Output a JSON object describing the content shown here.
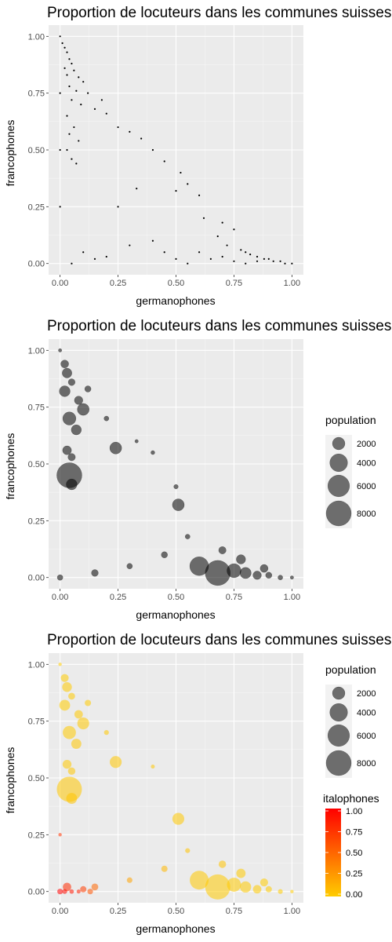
{
  "chart_data": [
    {
      "type": "scatter",
      "title": "Proportion de locuteurs dans les communes suisses",
      "xlabel": "germanophones",
      "ylabel": "francophones",
      "xlim": [
        0,
        1
      ],
      "ylim": [
        0,
        1
      ],
      "x_ticks": [
        "0.00",
        "0.25",
        "0.50",
        "0.75",
        "1.00"
      ],
      "y_ticks": [
        "0.00",
        "0.25",
        "0.50",
        "0.75",
        "1.00"
      ],
      "grid": true,
      "point_color": "#000000",
      "points": [
        {
          "x": 0.0,
          "y": 1.0
        },
        {
          "x": 0.01,
          "y": 0.97
        },
        {
          "x": 0.02,
          "y": 0.95
        },
        {
          "x": 0.03,
          "y": 0.93
        },
        {
          "x": 0.04,
          "y": 0.9
        },
        {
          "x": 0.05,
          "y": 0.88
        },
        {
          "x": 0.02,
          "y": 0.86
        },
        {
          "x": 0.06,
          "y": 0.85
        },
        {
          "x": 0.03,
          "y": 0.83
        },
        {
          "x": 0.08,
          "y": 0.82
        },
        {
          "x": 0.1,
          "y": 0.8
        },
        {
          "x": 0.04,
          "y": 0.78
        },
        {
          "x": 0.07,
          "y": 0.76
        },
        {
          "x": 0.12,
          "y": 0.75
        },
        {
          "x": 0.05,
          "y": 0.72
        },
        {
          "x": 0.09,
          "y": 0.7
        },
        {
          "x": 0.15,
          "y": 0.68
        },
        {
          "x": 0.03,
          "y": 0.65
        },
        {
          "x": 0.06,
          "y": 0.6
        },
        {
          "x": 0.04,
          "y": 0.57
        },
        {
          "x": 0.08,
          "y": 0.54
        },
        {
          "x": 0.03,
          "y": 0.5
        },
        {
          "x": 0.05,
          "y": 0.46
        },
        {
          "x": 0.07,
          "y": 0.44
        },
        {
          "x": 0.2,
          "y": 0.66
        },
        {
          "x": 0.25,
          "y": 0.6
        },
        {
          "x": 0.3,
          "y": 0.58
        },
        {
          "x": 0.18,
          "y": 0.72
        },
        {
          "x": 0.35,
          "y": 0.55
        },
        {
          "x": 0.4,
          "y": 0.5
        },
        {
          "x": 0.45,
          "y": 0.45
        },
        {
          "x": 0.52,
          "y": 0.4
        },
        {
          "x": 0.55,
          "y": 0.35
        },
        {
          "x": 0.6,
          "y": 0.3
        },
        {
          "x": 0.33,
          "y": 0.33
        },
        {
          "x": 0.5,
          "y": 0.32
        },
        {
          "x": 0.25,
          "y": 0.25
        },
        {
          "x": 0.62,
          "y": 0.2
        },
        {
          "x": 0.7,
          "y": 0.18
        },
        {
          "x": 0.75,
          "y": 0.15
        },
        {
          "x": 0.68,
          "y": 0.12
        },
        {
          "x": 0.72,
          "y": 0.08
        },
        {
          "x": 0.78,
          "y": 0.06
        },
        {
          "x": 0.8,
          "y": 0.05
        },
        {
          "x": 0.82,
          "y": 0.04
        },
        {
          "x": 0.85,
          "y": 0.03
        },
        {
          "x": 0.88,
          "y": 0.02
        },
        {
          "x": 0.9,
          "y": 0.02
        },
        {
          "x": 0.92,
          "y": 0.01
        },
        {
          "x": 0.95,
          "y": 0.01
        },
        {
          "x": 0.97,
          "y": 0.0
        },
        {
          "x": 1.0,
          "y": 0.0
        },
        {
          "x": 0.1,
          "y": 0.05
        },
        {
          "x": 0.15,
          "y": 0.02
        },
        {
          "x": 0.2,
          "y": 0.03
        },
        {
          "x": 0.3,
          "y": 0.08
        },
        {
          "x": 0.4,
          "y": 0.1
        },
        {
          "x": 0.45,
          "y": 0.05
        },
        {
          "x": 0.5,
          "y": 0.02
        },
        {
          "x": 0.55,
          "y": 0.0
        },
        {
          "x": 0.6,
          "y": 0.05
        },
        {
          "x": 0.65,
          "y": 0.02
        },
        {
          "x": 0.7,
          "y": 0.03
        },
        {
          "x": 0.75,
          "y": 0.01
        },
        {
          "x": 0.8,
          "y": 0.0
        },
        {
          "x": 0.85,
          "y": 0.01
        },
        {
          "x": 0.05,
          "y": 0.0
        },
        {
          "x": 0.0,
          "y": 0.25
        },
        {
          "x": 0.0,
          "y": 0.5
        },
        {
          "x": 0.0,
          "y": 0.75
        }
      ]
    },
    {
      "type": "scatter",
      "title": "Proportion de locuteurs dans les communes suisses",
      "xlabel": "germanophones",
      "ylabel": "francophones",
      "xlim": [
        0,
        1
      ],
      "ylim": [
        0,
        1
      ],
      "x_ticks": [
        "0.00",
        "0.25",
        "0.50",
        "0.75",
        "1.00"
      ],
      "y_ticks": [
        "0.00",
        "0.25",
        "0.50",
        "0.75",
        "1.00"
      ],
      "grid": true,
      "point_color": "#000000",
      "size_legend": {
        "title": "population",
        "values": [
          2000,
          4000,
          6000,
          8000
        ],
        "labels": [
          "2000",
          "4000",
          "6000",
          "8000"
        ],
        "placement": "right"
      },
      "points": [
        {
          "x": 0.0,
          "y": 1.0,
          "p": 150
        },
        {
          "x": 0.02,
          "y": 0.94,
          "p": 800
        },
        {
          "x": 0.03,
          "y": 0.9,
          "p": 1200
        },
        {
          "x": 0.05,
          "y": 0.86,
          "p": 600
        },
        {
          "x": 0.02,
          "y": 0.82,
          "p": 1500
        },
        {
          "x": 0.08,
          "y": 0.78,
          "p": 900
        },
        {
          "x": 0.1,
          "y": 0.74,
          "p": 1800
        },
        {
          "x": 0.04,
          "y": 0.7,
          "p": 2200
        },
        {
          "x": 0.07,
          "y": 0.65,
          "p": 1300
        },
        {
          "x": 0.03,
          "y": 0.56,
          "p": 1000
        },
        {
          "x": 0.05,
          "y": 0.53,
          "p": 700
        },
        {
          "x": 0.04,
          "y": 0.45,
          "p": 8000
        },
        {
          "x": 0.05,
          "y": 0.41,
          "p": 1500
        },
        {
          "x": 0.24,
          "y": 0.57,
          "p": 1800
        },
        {
          "x": 0.51,
          "y": 0.32,
          "p": 1800
        },
        {
          "x": 0.6,
          "y": 0.05,
          "p": 4500
        },
        {
          "x": 0.68,
          "y": 0.02,
          "p": 8000
        },
        {
          "x": 0.75,
          "y": 0.03,
          "p": 2500
        },
        {
          "x": 0.8,
          "y": 0.02,
          "p": 1600
        },
        {
          "x": 0.85,
          "y": 0.01,
          "p": 900
        },
        {
          "x": 0.9,
          "y": 0.01,
          "p": 500
        },
        {
          "x": 0.95,
          "y": 0.0,
          "p": 300
        },
        {
          "x": 0.15,
          "y": 0.02,
          "p": 600
        },
        {
          "x": 0.3,
          "y": 0.05,
          "p": 400
        },
        {
          "x": 0.45,
          "y": 0.1,
          "p": 500
        },
        {
          "x": 0.55,
          "y": 0.18,
          "p": 300
        },
        {
          "x": 0.7,
          "y": 0.12,
          "p": 700
        },
        {
          "x": 0.4,
          "y": 0.55,
          "p": 200
        },
        {
          "x": 0.2,
          "y": 0.7,
          "p": 300
        },
        {
          "x": 0.12,
          "y": 0.83,
          "p": 500
        },
        {
          "x": 0.33,
          "y": 0.6,
          "p": 150
        },
        {
          "x": 0.5,
          "y": 0.4,
          "p": 250
        },
        {
          "x": 0.0,
          "y": 0.0,
          "p": 400
        },
        {
          "x": 1.0,
          "y": 0.0,
          "p": 150
        },
        {
          "x": 0.78,
          "y": 0.08,
          "p": 1100
        },
        {
          "x": 0.88,
          "y": 0.04,
          "p": 800
        }
      ]
    },
    {
      "type": "scatter",
      "title": "Proportion de locuteurs dans les communes suisses",
      "xlabel": "germanophones",
      "ylabel": "francophones",
      "xlim": [
        0,
        1
      ],
      "ylim": [
        0,
        1
      ],
      "x_ticks": [
        "0.00",
        "0.25",
        "0.50",
        "0.75",
        "1.00"
      ],
      "y_ticks": [
        "0.00",
        "0.25",
        "0.50",
        "0.75",
        "1.00"
      ],
      "grid": true,
      "size_legend": {
        "title": "population",
        "values": [
          2000,
          4000,
          6000,
          8000
        ],
        "labels": [
          "2000",
          "4000",
          "6000",
          "8000"
        ],
        "placement": "right"
      },
      "color_legend": {
        "title": "italophones",
        "labels": [
          "0.00",
          "0.25",
          "0.50",
          "0.75",
          "1.00"
        ],
        "low_color": "#ffcc00",
        "high_color": "#ff0000",
        "placement": "right"
      },
      "points": [
        {
          "x": 0.0,
          "y": 1.0,
          "p": 150,
          "i": 0.0
        },
        {
          "x": 0.02,
          "y": 0.94,
          "p": 800,
          "i": 0.0
        },
        {
          "x": 0.03,
          "y": 0.9,
          "p": 1200,
          "i": 0.01
        },
        {
          "x": 0.05,
          "y": 0.86,
          "p": 600,
          "i": 0.01
        },
        {
          "x": 0.02,
          "y": 0.82,
          "p": 1500,
          "i": 0.0
        },
        {
          "x": 0.08,
          "y": 0.78,
          "p": 900,
          "i": 0.02
        },
        {
          "x": 0.1,
          "y": 0.74,
          "p": 1800,
          "i": 0.02
        },
        {
          "x": 0.04,
          "y": 0.7,
          "p": 2200,
          "i": 0.01
        },
        {
          "x": 0.07,
          "y": 0.65,
          "p": 1300,
          "i": 0.03
        },
        {
          "x": 0.03,
          "y": 0.56,
          "p": 1000,
          "i": 0.02
        },
        {
          "x": 0.05,
          "y": 0.53,
          "p": 700,
          "i": 0.03
        },
        {
          "x": 0.04,
          "y": 0.45,
          "p": 8000,
          "i": 0.03
        },
        {
          "x": 0.05,
          "y": 0.41,
          "p": 1500,
          "i": 0.04
        },
        {
          "x": 0.24,
          "y": 0.57,
          "p": 1800,
          "i": 0.03
        },
        {
          "x": 0.51,
          "y": 0.32,
          "p": 1800,
          "i": 0.02
        },
        {
          "x": 0.6,
          "y": 0.05,
          "p": 4500,
          "i": 0.02
        },
        {
          "x": 0.68,
          "y": 0.02,
          "p": 8000,
          "i": 0.01
        },
        {
          "x": 0.75,
          "y": 0.03,
          "p": 2500,
          "i": 0.01
        },
        {
          "x": 0.8,
          "y": 0.02,
          "p": 1600,
          "i": 0.01
        },
        {
          "x": 0.85,
          "y": 0.01,
          "p": 900,
          "i": 0.01
        },
        {
          "x": 0.9,
          "y": 0.01,
          "p": 500,
          "i": 0.0
        },
        {
          "x": 0.95,
          "y": 0.0,
          "p": 300,
          "i": 0.0
        },
        {
          "x": 0.15,
          "y": 0.02,
          "p": 600,
          "i": 0.5
        },
        {
          "x": 0.3,
          "y": 0.05,
          "p": 400,
          "i": 0.2
        },
        {
          "x": 0.45,
          "y": 0.1,
          "p": 500,
          "i": 0.1
        },
        {
          "x": 0.55,
          "y": 0.18,
          "p": 300,
          "i": 0.05
        },
        {
          "x": 0.7,
          "y": 0.12,
          "p": 700,
          "i": 0.05
        },
        {
          "x": 0.4,
          "y": 0.55,
          "p": 200,
          "i": 0.02
        },
        {
          "x": 0.2,
          "y": 0.7,
          "p": 300,
          "i": 0.02
        },
        {
          "x": 0.12,
          "y": 0.83,
          "p": 500,
          "i": 0.01
        },
        {
          "x": 0.0,
          "y": 0.0,
          "p": 400,
          "i": 1.0
        },
        {
          "x": 0.02,
          "y": 0.0,
          "p": 300,
          "i": 0.95
        },
        {
          "x": 0.05,
          "y": 0.0,
          "p": 250,
          "i": 0.9
        },
        {
          "x": 0.08,
          "y": 0.0,
          "p": 200,
          "i": 0.85
        },
        {
          "x": 0.03,
          "y": 0.02,
          "p": 900,
          "i": 0.8
        },
        {
          "x": 0.1,
          "y": 0.01,
          "p": 500,
          "i": 0.7
        },
        {
          "x": 0.13,
          "y": 0.0,
          "p": 400,
          "i": 0.6
        },
        {
          "x": 0.0,
          "y": 0.25,
          "p": 150,
          "i": 0.75
        },
        {
          "x": 1.0,
          "y": 0.0,
          "p": 150,
          "i": 0.0
        },
        {
          "x": 0.78,
          "y": 0.08,
          "p": 1100,
          "i": 0.01
        },
        {
          "x": 0.88,
          "y": 0.04,
          "p": 800,
          "i": 0.0
        }
      ]
    }
  ]
}
